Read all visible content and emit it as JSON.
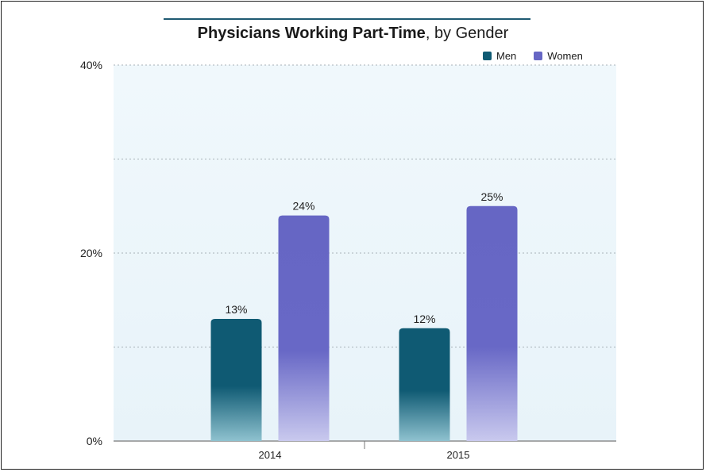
{
  "chart_data": {
    "type": "bar",
    "title": "Physicians Working Part-Time",
    "subtitle": "by Gender",
    "categories": [
      "2014",
      "2015"
    ],
    "series": [
      {
        "name": "Men",
        "values": [
          13,
          12
        ],
        "labels": [
          "13%",
          "12%"
        ],
        "color": "#0f5a73"
      },
      {
        "name": "Women",
        "values": [
          24,
          25
        ],
        "labels": [
          "24%",
          "25%"
        ],
        "color": "#6666c4"
      }
    ],
    "ylim": [
      0,
      40
    ],
    "yticks": [
      {
        "value": 0,
        "label": "0%"
      },
      {
        "value": 20,
        "label": "20%"
      },
      {
        "value": 40,
        "label": "40%"
      }
    ],
    "grid": true,
    "legend_position": "top-right",
    "xlabel": "",
    "ylabel": ""
  }
}
